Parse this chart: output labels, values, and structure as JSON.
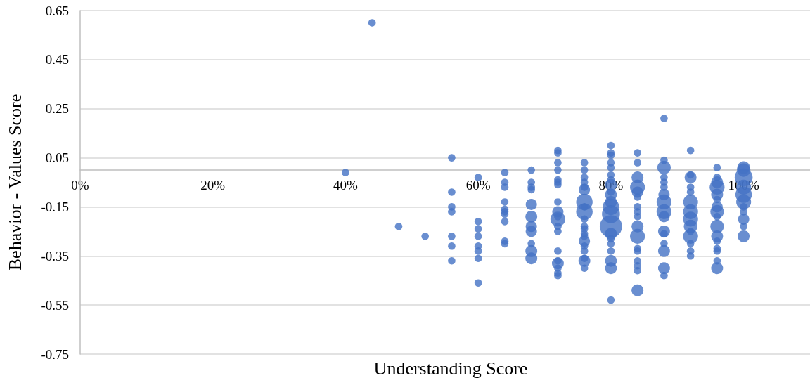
{
  "chart_data": {
    "type": "bubble",
    "xlabel": "Understanding Score",
    "ylabel": "Behavior - Values Score",
    "color": "#4472c4",
    "grid": "y",
    "xlim": [
      0,
      1.1
    ],
    "xticks": [
      {
        "value": 0,
        "label": "0%"
      },
      {
        "value": 0.2,
        "label": "20%"
      },
      {
        "value": 0.4,
        "label": "40%"
      },
      {
        "value": 0.6,
        "label": "60%"
      },
      {
        "value": 0.8,
        "label": "80%"
      },
      {
        "value": 1,
        "label": "100%"
      }
    ],
    "ylim": [
      -0.75,
      0.65
    ],
    "yticks": [
      -0.75,
      -0.55,
      -0.35,
      -0.15,
      0.05,
      0.25,
      0.45,
      0.65
    ],
    "x": [
      0.4,
      0.44,
      0.48,
      0.52,
      0.56,
      0.56,
      0.56,
      0.56,
      0.56,
      0.56,
      0.56,
      0.6,
      0.6,
      0.6,
      0.6,
      0.6,
      0.6,
      0.6,
      0.6,
      0.64,
      0.64,
      0.64,
      0.64,
      0.64,
      0.64,
      0.64,
      0.64,
      0.64,
      0.64,
      0.68,
      0.68,
      0.68,
      0.68,
      0.68,
      0.68,
      0.68,
      0.68,
      0.68,
      0.68,
      0.68,
      0.72,
      0.72,
      0.72,
      0.72,
      0.72,
      0.72,
      0.72,
      0.72,
      0.72,
      0.72,
      0.72,
      0.72,
      0.72,
      0.72,
      0.72,
      0.72,
      0.72,
      0.72,
      0.72,
      0.76,
      0.76,
      0.76,
      0.76,
      0.76,
      0.76,
      0.76,
      0.76,
      0.76,
      0.76,
      0.76,
      0.76,
      0.76,
      0.76,
      0.76,
      0.76,
      0.76,
      0.76,
      0.76,
      0.76,
      0.8,
      0.8,
      0.8,
      0.8,
      0.8,
      0.8,
      0.8,
      0.8,
      0.8,
      0.8,
      0.8,
      0.8,
      0.8,
      0.8,
      0.8,
      0.8,
      0.8,
      0.8,
      0.8,
      0.8,
      0.8,
      0.84,
      0.84,
      0.84,
      0.84,
      0.84,
      0.84,
      0.84,
      0.84,
      0.84,
      0.84,
      0.84,
      0.84,
      0.84,
      0.84,
      0.84,
      0.84,
      0.84,
      0.88,
      0.88,
      0.88,
      0.88,
      0.88,
      0.88,
      0.88,
      0.88,
      0.88,
      0.88,
      0.88,
      0.88,
      0.88,
      0.88,
      0.88,
      0.88,
      0.92,
      0.92,
      0.92,
      0.92,
      0.92,
      0.92,
      0.92,
      0.92,
      0.92,
      0.92,
      0.92,
      0.92,
      0.92,
      0.92,
      0.96,
      0.96,
      0.96,
      0.96,
      0.96,
      0.96,
      0.96,
      0.96,
      0.96,
      0.96,
      0.96,
      0.96,
      0.96,
      0.96,
      0.96,
      0.96,
      1.0,
      1.0,
      1.0,
      1.0,
      1.0,
      1.0,
      1.0,
      1.0,
      1.0,
      1.0,
      1.0
    ],
    "values": [
      -0.01,
      0.6,
      -0.23,
      -0.27,
      0.05,
      -0.09,
      -0.15,
      -0.17,
      -0.27,
      -0.31,
      -0.37,
      -0.03,
      -0.21,
      -0.24,
      -0.27,
      -0.31,
      -0.33,
      -0.36,
      -0.46,
      -0.01,
      -0.05,
      -0.07,
      -0.13,
      -0.16,
      -0.17,
      -0.18,
      -0.21,
      -0.29,
      -0.3,
      0.0,
      -0.05,
      -0.07,
      -0.08,
      -0.14,
      -0.19,
      -0.23,
      -0.25,
      -0.3,
      -0.33,
      -0.36,
      0.08,
      0.07,
      0.03,
      0.0,
      -0.04,
      -0.05,
      -0.06,
      -0.13,
      -0.17,
      -0.19,
      -0.2,
      -0.23,
      -0.25,
      -0.33,
      -0.37,
      -0.38,
      -0.4,
      -0.42,
      -0.43,
      0.03,
      0.0,
      -0.03,
      -0.05,
      -0.07,
      -0.08,
      -0.13,
      -0.15,
      -0.17,
      -0.2,
      -0.23,
      -0.24,
      -0.26,
      -0.27,
      -0.29,
      -0.31,
      -0.33,
      -0.36,
      -0.37,
      -0.4,
      0.1,
      0.07,
      0.06,
      0.03,
      0.01,
      -0.02,
      -0.04,
      -0.06,
      -0.09,
      -0.1,
      -0.13,
      -0.15,
      -0.18,
      -0.23,
      -0.26,
      -0.28,
      -0.3,
      -0.33,
      -0.37,
      -0.4,
      -0.53,
      0.07,
      0.03,
      -0.03,
      -0.07,
      -0.09,
      -0.11,
      -0.15,
      -0.17,
      -0.19,
      -0.23,
      -0.27,
      -0.32,
      -0.33,
      -0.37,
      -0.39,
      -0.41,
      -0.49,
      0.21,
      0.04,
      0.01,
      -0.03,
      -0.05,
      -0.07,
      -0.1,
      -0.13,
      -0.17,
      -0.19,
      -0.25,
      -0.26,
      -0.3,
      -0.33,
      -0.4,
      -0.43,
      0.08,
      -0.02,
      -0.03,
      -0.07,
      -0.09,
      -0.13,
      -0.17,
      -0.2,
      -0.23,
      -0.25,
      -0.27,
      -0.3,
      -0.33,
      -0.35,
      0.01,
      -0.03,
      -0.05,
      -0.07,
      -0.1,
      -0.12,
      -0.15,
      -0.17,
      -0.19,
      -0.23,
      -0.27,
      -0.29,
      -0.32,
      -0.33,
      -0.37,
      -0.4,
      0.01,
      0.0,
      -0.03,
      -0.07,
      -0.1,
      -0.13,
      -0.15,
      -0.17,
      -0.2,
      -0.23,
      -0.27
    ],
    "sizes": [
      0.11,
      0.11,
      0.11,
      0.11,
      0.11,
      0.11,
      0.11,
      0.11,
      0.11,
      0.11,
      0.11,
      0.11,
      0.11,
      0.11,
      0.11,
      0.11,
      0.11,
      0.11,
      0.11,
      0.11,
      0.11,
      0.11,
      0.11,
      0.11,
      0.11,
      0.11,
      0.11,
      0.11,
      0.11,
      0.11,
      0.11,
      0.11,
      0.11,
      0.25,
      0.28,
      0.25,
      0.25,
      0.11,
      0.28,
      0.28,
      0.11,
      0.11,
      0.11,
      0.11,
      0.11,
      0.11,
      0.11,
      0.11,
      0.25,
      0.11,
      0.44,
      0.11,
      0.11,
      0.11,
      0.11,
      0.28,
      0.11,
      0.11,
      0.11,
      0.11,
      0.11,
      0.11,
      0.11,
      0.11,
      0.25,
      0.54,
      0.11,
      0.54,
      0.11,
      0.11,
      0.11,
      0.11,
      0.11,
      0.25,
      0.11,
      0.11,
      0.11,
      0.28,
      0.11,
      0.11,
      0.11,
      0.11,
      0.11,
      0.11,
      0.11,
      0.11,
      0.28,
      0.11,
      0.28,
      0.28,
      0.54,
      0.64,
      1,
      0.28,
      0.11,
      0.11,
      0.11,
      0.28,
      0.28,
      0.11,
      0.11,
      0.11,
      0.28,
      0.44,
      0.25,
      0.11,
      0.11,
      0.11,
      0.11,
      0.28,
      0.44,
      0.11,
      0.11,
      0.11,
      0.11,
      0.11,
      0.28,
      0.11,
      0.11,
      0.36,
      0.11,
      0.11,
      0.11,
      0.25,
      0.44,
      0.44,
      0.25,
      0.28,
      0.11,
      0.11,
      0.28,
      0.28,
      0.11,
      0.11,
      0.11,
      0.28,
      0.11,
      0.11,
      0.44,
      0.44,
      0.44,
      0.36,
      0.11,
      0.44,
      0.11,
      0.11,
      0.11,
      0.11,
      0.11,
      0.28,
      0.44,
      0.28,
      0.11,
      0.25,
      0.36,
      0.11,
      0.36,
      0.28,
      0.11,
      0.11,
      0.11,
      0.11,
      0.28,
      0.32,
      0.36,
      0.64,
      0.44,
      0.54,
      0.44,
      0.11,
      0.11,
      0.25,
      0.11,
      0.28
    ]
  }
}
